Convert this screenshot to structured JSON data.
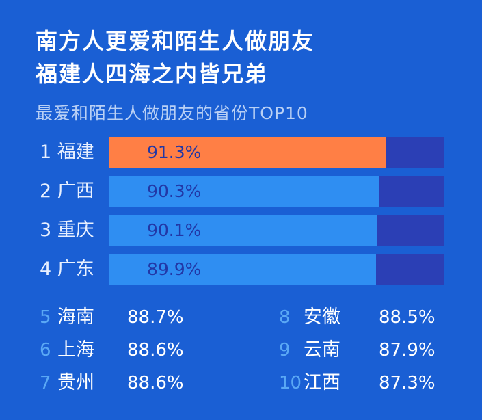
{
  "headline": {
    "line1": "南方人更爱和陌生人做朋友",
    "line2": "福建人四海之内皆兄弟"
  },
  "subtitle": "最爱和陌生人做朋友的省份TOP10",
  "colors": {
    "background": "#1a5fd4",
    "highlight_bar": "#ff7f45",
    "regular_bar": "#2f8ef2",
    "bar_track": "#2b3fb5",
    "rank_accent": "#5aa8f5"
  },
  "chart_data": {
    "type": "bar",
    "orientation": "horizontal",
    "title": "最爱和陌生人做朋友的省份TOP10",
    "xlim": [
      0,
      100
    ],
    "categories": [
      "福建",
      "广西",
      "重庆",
      "广东",
      "海南",
      "上海",
      "贵州",
      "安徽",
      "云南",
      "江西"
    ],
    "values": [
      91.3,
      90.3,
      90.1,
      89.9,
      88.7,
      88.6,
      88.6,
      88.5,
      87.9,
      87.3
    ],
    "top_bars": [
      {
        "rank": "1",
        "name": "福建",
        "value": 91.3,
        "label": "91.3%",
        "highlight": true
      },
      {
        "rank": "2",
        "name": "广西",
        "value": 90.3,
        "label": "90.3%",
        "highlight": false
      },
      {
        "rank": "3",
        "name": "重庆",
        "value": 90.1,
        "label": "90.1%",
        "highlight": false
      },
      {
        "rank": "4",
        "name": "广东",
        "value": 89.9,
        "label": "89.9%",
        "highlight": false
      }
    ],
    "rest_left": [
      {
        "rank": "5",
        "name": "海南",
        "label": "88.7%"
      },
      {
        "rank": "6",
        "name": "上海",
        "label": "88.6%"
      },
      {
        "rank": "7",
        "name": "贵州",
        "label": "88.6%"
      }
    ],
    "rest_right": [
      {
        "rank": "8",
        "name": "安徽",
        "label": "88.5%"
      },
      {
        "rank": "9",
        "name": "云南",
        "label": "87.9%"
      },
      {
        "rank": "10",
        "name": "江西",
        "label": "87.3%"
      }
    ]
  }
}
